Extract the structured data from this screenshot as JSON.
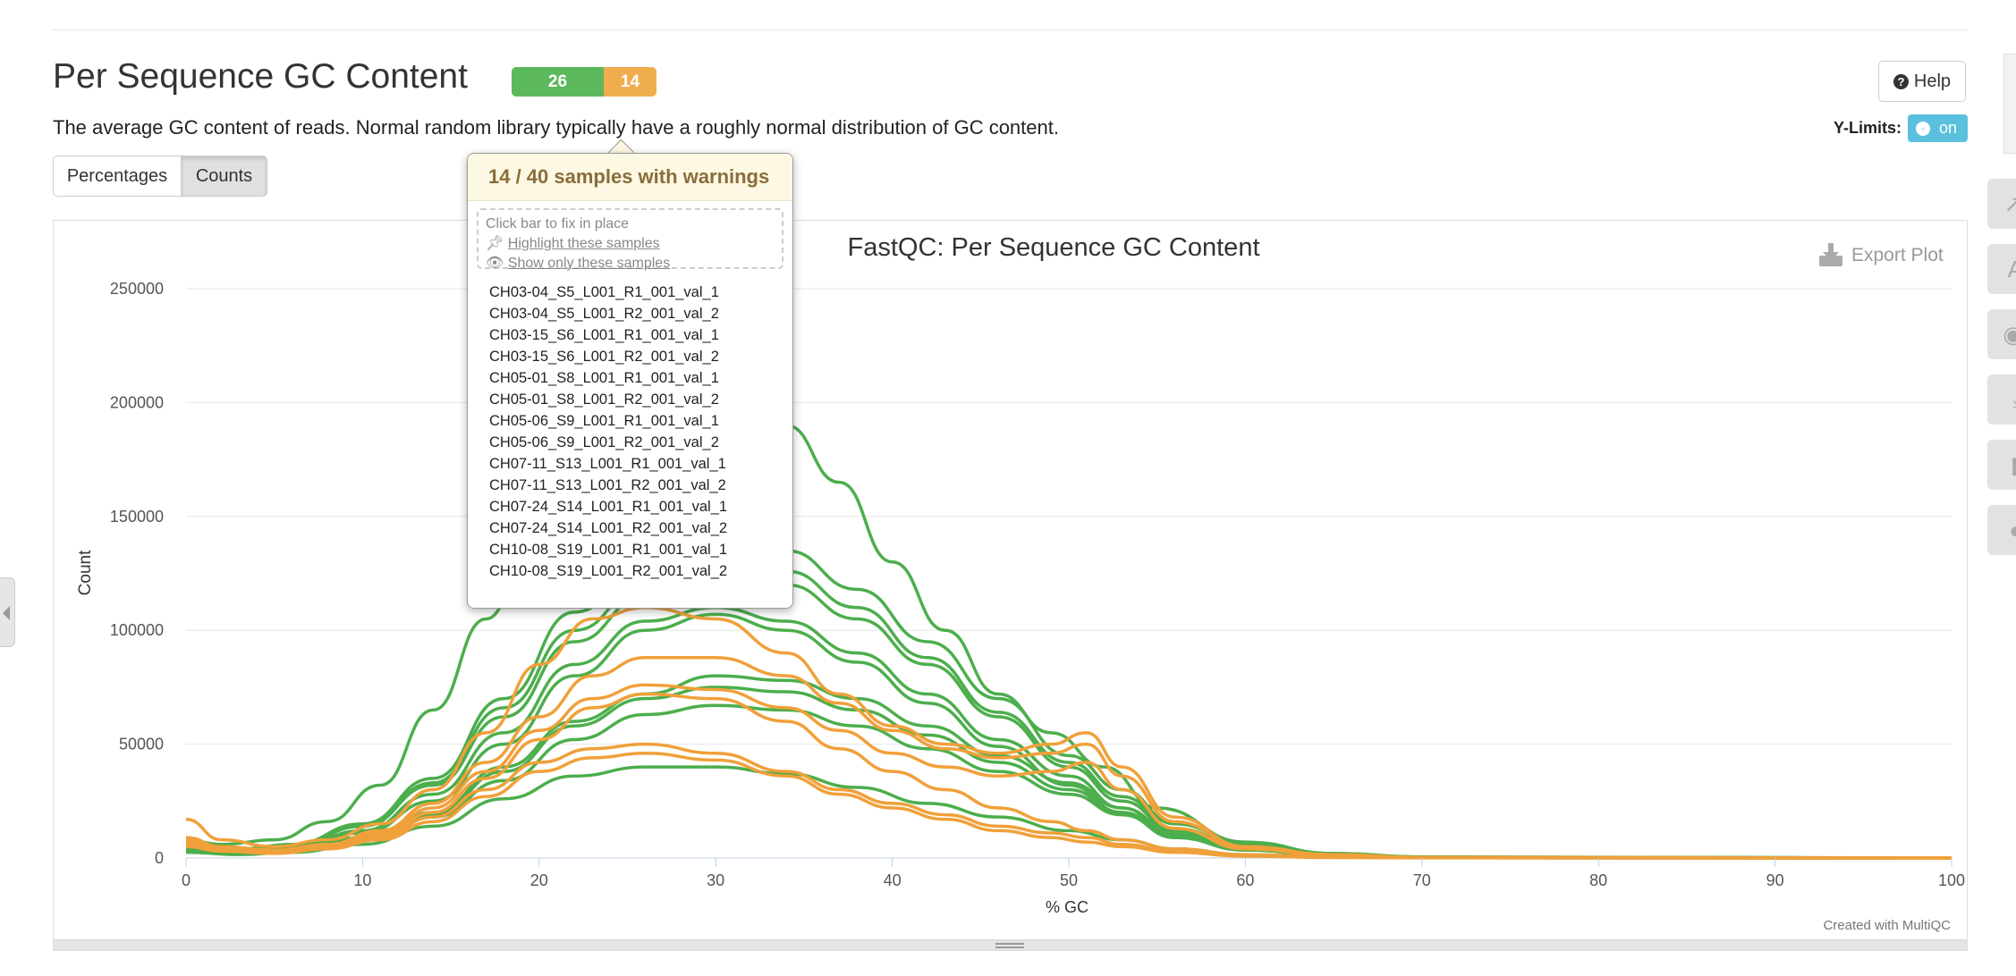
{
  "section": {
    "title": "Per Sequence GC Content",
    "status": {
      "pass": "26",
      "warn": "14"
    },
    "description": "The average GC content of reads. Normal random library typically have a roughly normal distribution of GC content.",
    "help_label": "Help",
    "ylimits_label": "Y-Limits:",
    "ylimits_value": "on",
    "buttons": {
      "percentages": "Percentages",
      "counts": "Counts"
    }
  },
  "tooltip": {
    "header": "14 / 40 samples with warnings",
    "hint": "Click bar to fix in place",
    "highlight": "Highlight these samples",
    "show_only": "Show only these samples",
    "samples": [
      "CH03-04_S5_L001_R1_001_val_1",
      "CH03-04_S5_L001_R2_001_val_2",
      "CH03-15_S6_L001_R1_001_val_1",
      "CH03-15_S6_L001_R2_001_val_2",
      "CH05-01_S8_L001_R1_001_val_1",
      "CH05-01_S8_L001_R2_001_val_2",
      "CH05-06_S9_L001_R1_001_val_1",
      "CH05-06_S9_L001_R2_001_val_2",
      "CH07-11_S13_L001_R1_001_val_1",
      "CH07-11_S13_L001_R2_001_val_2",
      "CH07-24_S14_L001_R1_001_val_1",
      "CH07-24_S14_L001_R2_001_val_2",
      "CH10-08_S19_L001_R1_001_val_1",
      "CH10-08_S19_L001_R2_001_val_2"
    ]
  },
  "plot": {
    "export_label": "Export Plot",
    "credit": "Created with MultiQC"
  },
  "colors": {
    "pass": "#5cb85c",
    "warn": "#f0ad4e",
    "green_line": "#4cae4c",
    "orange_line": "#f0a03a"
  },
  "icons": [
    "help-icon",
    "export-icon",
    "pin-icon",
    "eye-icon",
    "collapse-arrow-icon",
    "toolbox-icons"
  ],
  "chart_data": {
    "type": "line",
    "title": "FastQC: Per Sequence GC Content",
    "xlabel": "% GC",
    "ylabel": "Count",
    "xlim": [
      0,
      100
    ],
    "ylim": [
      0,
      250000
    ],
    "x_ticks": [
      "0",
      "10",
      "20",
      "30",
      "40",
      "50",
      "60",
      "70",
      "80",
      "90",
      "100"
    ],
    "y_ticks": [
      "0",
      "50000",
      "100000",
      "150000",
      "200000",
      "250000"
    ],
    "grid": true,
    "series": [
      {
        "status": "pass",
        "x": [
          0,
          2,
          5,
          8,
          11,
          14,
          17,
          20,
          23,
          26,
          30,
          34,
          37,
          40,
          43,
          46,
          49,
          52,
          55,
          60,
          65,
          70,
          80,
          100
        ],
        "y": [
          8000,
          6000,
          8000,
          16000,
          32000,
          65000,
          105000,
          150000,
          180000,
          200000,
          205000,
          190000,
          165000,
          130000,
          100000,
          72000,
          55000,
          40000,
          22000,
          7000,
          2000,
          500,
          100,
          0
        ]
      },
      {
        "status": "pass",
        "x": [
          0,
          3,
          6,
          10,
          14,
          18,
          22,
          26,
          30,
          34,
          38,
          42,
          46,
          50,
          53,
          56,
          60,
          65,
          70,
          100
        ],
        "y": [
          6000,
          4000,
          6000,
          15000,
          35000,
          70000,
          108000,
          128000,
          138000,
          135000,
          118000,
          95000,
          70000,
          45000,
          30000,
          15000,
          6000,
          2000,
          500,
          0
        ]
      },
      {
        "status": "pass",
        "x": [
          0,
          3,
          6,
          10,
          14,
          18,
          22,
          26,
          30,
          34,
          38,
          42,
          46,
          50,
          53,
          56,
          60,
          65,
          70,
          100
        ],
        "y": [
          5000,
          3000,
          5000,
          14000,
          32000,
          62000,
          95000,
          115000,
          125000,
          120000,
          105000,
          85000,
          62000,
          40000,
          25000,
          12000,
          5000,
          1500,
          400,
          0
        ]
      },
      {
        "status": "pass",
        "x": [
          0,
          3,
          6,
          10,
          14,
          18,
          22,
          26,
          30,
          34,
          38,
          42,
          46,
          50,
          53,
          56,
          60,
          65,
          70,
          100
        ],
        "y": [
          4000,
          3000,
          4500,
          12000,
          28000,
          55000,
          85000,
          104000,
          110000,
          104000,
          90000,
          72000,
          52000,
          36000,
          22000,
          10000,
          4000,
          1000,
          300,
          0
        ]
      },
      {
        "status": "pass",
        "x": [
          0,
          3,
          6,
          10,
          14,
          18,
          22,
          26,
          30,
          34,
          38,
          42,
          46,
          50,
          53,
          56,
          60,
          65,
          70,
          100
        ],
        "y": [
          4000,
          2500,
          4000,
          11000,
          25000,
          50000,
          80000,
          100000,
          107000,
          100000,
          86000,
          68000,
          49000,
          32000,
          20000,
          9000,
          3500,
          1000,
          200,
          0
        ]
      },
      {
        "status": "pass",
        "x": [
          0,
          3,
          6,
          10,
          14,
          18,
          22,
          26,
          30,
          34,
          38,
          42,
          46,
          50,
          53,
          56,
          60,
          65,
          70,
          100
        ],
        "y": [
          3500,
          2000,
          3500,
          9000,
          20000,
          40000,
          60000,
          72000,
          80000,
          78000,
          70000,
          58000,
          45000,
          33000,
          22000,
          11000,
          4000,
          1200,
          300,
          0
        ]
      },
      {
        "status": "pass",
        "x": [
          0,
          3,
          6,
          10,
          14,
          18,
          22,
          26,
          30,
          34,
          38,
          42,
          46,
          50,
          53,
          56,
          60,
          65,
          70,
          100
        ],
        "y": [
          3000,
          2000,
          3000,
          8000,
          18000,
          34000,
          52000,
          63000,
          67000,
          65000,
          58000,
          48000,
          38000,
          28000,
          19000,
          9000,
          3500,
          1000,
          200,
          0
        ]
      },
      {
        "status": "pass",
        "x": [
          0,
          3,
          6,
          10,
          14,
          18,
          22,
          26,
          30,
          34,
          38,
          42,
          46,
          50,
          53,
          56,
          60,
          65,
          70,
          100
        ],
        "y": [
          2500,
          1500,
          2500,
          6000,
          14000,
          26000,
          36000,
          40000,
          40000,
          37000,
          31000,
          24000,
          18000,
          12000,
          8000,
          4000,
          1500,
          500,
          100,
          0
        ]
      },
      {
        "status": "pass",
        "x": [
          0,
          3,
          6,
          10,
          14,
          18,
          22,
          26,
          30,
          34,
          38,
          42,
          46,
          50,
          53,
          56,
          60,
          65,
          70,
          100
        ],
        "y": [
          3000,
          2000,
          3000,
          8000,
          19000,
          38000,
          58000,
          70000,
          75000,
          73000,
          65000,
          54000,
          42000,
          30000,
          20000,
          10000,
          4000,
          1200,
          300,
          0
        ]
      },
      {
        "status": "pass",
        "x": [
          0,
          3,
          6,
          10,
          14,
          18,
          22,
          26,
          30,
          34,
          38,
          42,
          46,
          50,
          53,
          56,
          60,
          65,
          70,
          100
        ],
        "y": [
          5000,
          3500,
          5500,
          14000,
          33000,
          66000,
          100000,
          120000,
          130000,
          126000,
          110000,
          88000,
          64000,
          42000,
          27000,
          13000,
          5000,
          1500,
          400,
          0
        ]
      },
      {
        "status": "warn",
        "x": [
          0,
          2,
          5,
          8,
          11,
          14,
          17,
          20,
          23,
          26,
          30,
          34,
          37,
          40,
          43,
          46,
          49,
          51,
          53,
          56,
          60,
          65,
          70,
          100
        ],
        "y": [
          17000,
          8000,
          5000,
          8000,
          15000,
          30000,
          55000,
          85000,
          105000,
          110000,
          105000,
          90000,
          72000,
          58000,
          50000,
          46000,
          50000,
          55000,
          40000,
          18000,
          5000,
          1500,
          300,
          0
        ]
      },
      {
        "status": "warn",
        "x": [
          0,
          2,
          5,
          8,
          11,
          14,
          17,
          20,
          23,
          26,
          30,
          34,
          37,
          40,
          43,
          46,
          49,
          51,
          53,
          56,
          60,
          65,
          70,
          100
        ],
        "y": [
          9000,
          5000,
          3500,
          6000,
          12000,
          24000,
          42000,
          62000,
          80000,
          88000,
          88000,
          80000,
          68000,
          56000,
          48000,
          44000,
          46000,
          50000,
          36000,
          16000,
          4500,
          1200,
          200,
          0
        ]
      },
      {
        "status": "warn",
        "x": [
          0,
          2,
          5,
          8,
          11,
          14,
          17,
          20,
          23,
          26,
          30,
          34,
          37,
          40,
          43,
          46,
          49,
          51,
          53,
          56,
          60,
          65,
          70,
          100
        ],
        "y": [
          7000,
          4000,
          3000,
          5000,
          10000,
          20000,
          35000,
          52000,
          66000,
          72000,
          70000,
          60000,
          48000,
          38000,
          30000,
          22000,
          16000,
          12000,
          8000,
          4000,
          1500,
          400,
          100,
          0
        ]
      },
      {
        "status": "warn",
        "x": [
          0,
          2,
          5,
          8,
          11,
          14,
          17,
          20,
          23,
          26,
          30,
          34,
          37,
          40,
          43,
          46,
          49,
          51,
          53,
          56,
          60,
          65,
          70,
          100
        ],
        "y": [
          6000,
          3500,
          2500,
          4500,
          9000,
          18000,
          30000,
          42000,
          48000,
          50000,
          46000,
          38000,
          30000,
          24000,
          19000,
          14000,
          11000,
          9000,
          6000,
          3000,
          1000,
          300,
          100,
          0
        ]
      },
      {
        "status": "warn",
        "x": [
          0,
          2,
          5,
          8,
          11,
          14,
          17,
          20,
          23,
          26,
          30,
          34,
          37,
          40,
          43,
          46,
          49,
          51,
          53,
          56,
          60,
          65,
          70,
          100
        ],
        "y": [
          8000,
          4500,
          3000,
          5500,
          11000,
          22000,
          38000,
          56000,
          70000,
          76000,
          74000,
          66000,
          56000,
          46000,
          40000,
          36000,
          38000,
          42000,
          30000,
          13000,
          4000,
          1000,
          200,
          0
        ]
      },
      {
        "status": "warn",
        "x": [
          0,
          2,
          5,
          8,
          11,
          14,
          17,
          20,
          23,
          26,
          30,
          34,
          37,
          40,
          43,
          46,
          49,
          51,
          53,
          56,
          60,
          65,
          70,
          100
        ],
        "y": [
          5000,
          3000,
          2000,
          4000,
          8000,
          16000,
          27000,
          38000,
          44000,
          46000,
          43000,
          36000,
          28000,
          22000,
          17000,
          12000,
          9000,
          7000,
          5000,
          2500,
          800,
          200,
          50,
          0
        ]
      }
    ]
  }
}
